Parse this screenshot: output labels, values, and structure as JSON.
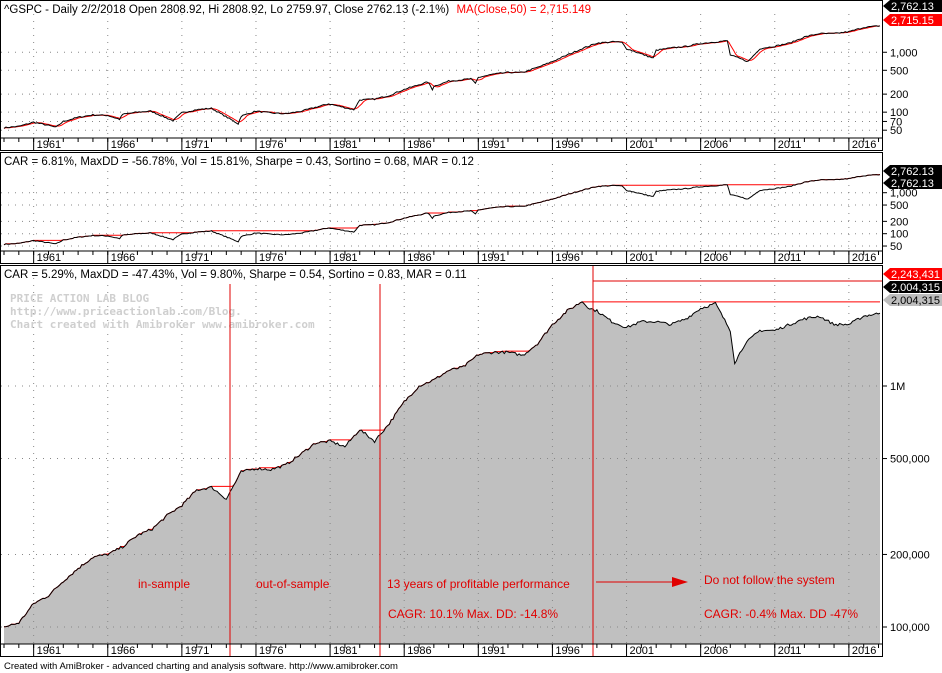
{
  "panes": [
    {
      "id": "price",
      "header_black": "^GSPC - Daily 2/2/2018 Open 2808.92, Hi 2808.92, Lo 2759.97, Close 2762.13 (-2.1%)",
      "header_red": "MA(Close,50) = 2,715.149",
      "y_ticks": [
        "1,000",
        "500",
        "200",
        "100",
        "70",
        "50"
      ],
      "y_tick_values": [
        1000,
        500,
        200,
        100,
        70,
        50
      ],
      "value_tags": [
        {
          "text": "2,762.13",
          "value": 2762.13,
          "bg": "#000000",
          "fg": "#ffffff"
        },
        {
          "text": "2,715.15",
          "value": 2715.15,
          "bg": "#ff0000",
          "fg": "#ffffff"
        }
      ]
    },
    {
      "id": "buyhold",
      "header_black": "CAR = 6.81%, MaxDD = -56.78%, Vol = 15.81%, Sharpe = 0.43, Sortino = 0.68, MAR = 0.12",
      "header_red": "",
      "y_ticks": [
        "1,000",
        "500",
        "200",
        "100",
        "50"
      ],
      "y_tick_values": [
        1000,
        500,
        200,
        100,
        50
      ],
      "value_tags": [
        {
          "text": "2,762.13",
          "value": 2762.13,
          "bg": "#000000",
          "fg": "#ffffff"
        },
        {
          "text": "2,762.13",
          "value": 2762.13,
          "bg": "#000000",
          "fg": "#ffffff"
        }
      ]
    },
    {
      "id": "equity",
      "header_black": "CAR = 5.29%, MaxDD = -47.43%, Vol = 9.80%, Sharpe = 0.54, Sortino = 0.83, MAR = 0.11",
      "header_red": "",
      "y_ticks": [
        "1M",
        "500,000",
        "200,000",
        "100,000"
      ],
      "y_tick_values": [
        1000000,
        500000,
        200000,
        100000
      ],
      "value_tags": [
        {
          "text": "2,243,431",
          "value": 2243431,
          "bg": "#ff0000",
          "fg": "#ffffff"
        },
        {
          "text": "2,004,315",
          "value": 2004315,
          "bg": "#000000",
          "fg": "#ffffff"
        },
        {
          "text": "2,004,315",
          "value": 2004315,
          "bg": "#bdbdbd",
          "fg": "#000000"
        }
      ]
    }
  ],
  "x_ticks": [
    "1961",
    "1966",
    "1971",
    "1976",
    "1981",
    "1986",
    "1991",
    "1996",
    "2001",
    "2006",
    "2011",
    "2016"
  ],
  "watermark": [
    "PRICE ACTION LAB BLOG",
    "http://www.priceactionlab.com/Blog.",
    "Chart created with Amibroker www.amibroker.com"
  ],
  "annotations": {
    "in_sample": "in-sample",
    "out_of_sample": "out-of-sample",
    "profitable": "13 years of  profitable performance",
    "cagr_profitable": "CAGR: 10.1%  Max. DD: -14.8%",
    "do_not_follow": "Do not follow the system",
    "cagr_after": "CAGR: -0.4%  Max. DD -47%"
  },
  "footer": "Created with AmiBroker - advanced charting and analysis software. http://www.amibroker.com",
  "colors": {
    "price_line": "#000000",
    "ma_line": "#ff0000",
    "peak_line": "#ff0000",
    "equity_fill": "#c0c0c0",
    "annotation": "#e00000",
    "watermark": "#cfcfcf"
  },
  "chart_data": [
    {
      "type": "line",
      "scale": "log",
      "x_range": [
        1959,
        2018.1
      ],
      "ylim": [
        40,
        3200
      ],
      "series": [
        {
          "name": "^GSPC",
          "x": [
            1959,
            1960,
            1961,
            1962,
            1962.5,
            1963,
            1964,
            1965,
            1966,
            1966.8,
            1967,
            1968,
            1968.9,
            1970.4,
            1971,
            1972,
            1973,
            1974.8,
            1975,
            1976,
            1977,
            1978,
            1979,
            1980,
            1980.9,
            1982.6,
            1983,
            1984,
            1985,
            1986,
            1987.6,
            1987.9,
            1988,
            1989,
            1990.5,
            1990.8,
            1991,
            1992,
            1993,
            1994,
            1995,
            1996,
            1997,
            1998,
            1999,
            2000.2,
            2000.7,
            2001,
            2002.8,
            2003,
            2004,
            2005,
            2006,
            2007.8,
            2008,
            2009.2,
            2010,
            2011,
            2012,
            2013,
            2014,
            2015,
            2016,
            2017,
            2018.1
          ],
          "values": [
            55,
            58,
            68,
            60,
            56,
            70,
            82,
            90,
            88,
            76,
            92,
            100,
            104,
            72,
            98,
            110,
            116,
            64,
            86,
            104,
            97,
            94,
            103,
            120,
            138,
            110,
            160,
            165,
            190,
            240,
            320,
            240,
            270,
            330,
            360,
            300,
            380,
            430,
            460,
            460,
            560,
            700,
            900,
            1150,
            1420,
            1500,
            1450,
            1150,
            800,
            1080,
            1180,
            1250,
            1400,
            1560,
            900,
            700,
            1150,
            1260,
            1420,
            1800,
            2050,
            2050,
            2200,
            2600,
            2762
          ]
        },
        {
          "name": "MA(Close,50)",
          "x": [
            1959,
            2018.1
          ],
          "values": [
            55,
            2715
          ]
        }
      ]
    },
    {
      "type": "line",
      "scale": "log",
      "x_range": [
        1959,
        2018.1
      ],
      "ylim": [
        40,
        3200
      ],
      "series": [
        {
          "name": "",
          "x": [
            1959,
            2018.1
          ],
          "values": [
            55,
            2762
          ]
        }
      ]
    },
    {
      "type": "area",
      "scale": "log",
      "x_range": [
        1959,
        2018.1
      ],
      "ylim": [
        85000,
        2600000
      ],
      "series": [
        {
          "name": "",
          "x": [
            1959,
            1960,
            1961,
            1962,
            1963,
            1964,
            1965,
            1966,
            1967,
            1968,
            1969,
            1970,
            1971,
            1972,
            1973,
            1974,
            1975,
            1976,
            1977,
            1978,
            1979,
            1980,
            1981,
            1982,
            1983,
            1984,
            1985,
            1986,
            1987,
            1988,
            1989,
            1990,
            1991,
            1992,
            1993,
            1994,
            1995,
            1996,
            1997,
            1998,
            1998.5,
            1999,
            2000,
            2001,
            2002,
            2003,
            2004,
            2005,
            2006,
            2007,
            2008,
            2008.3,
            2009,
            2010,
            2011,
            2012,
            2013,
            2014,
            2015,
            2016,
            2017,
            2018.1
          ],
          "values": [
            100000,
            104000,
            125000,
            135000,
            155000,
            175000,
            195000,
            200000,
            215000,
            240000,
            255000,
            290000,
            320000,
            370000,
            380000,
            340000,
            440000,
            455000,
            450000,
            470000,
            520000,
            580000,
            590000,
            560000,
            660000,
            590000,
            700000,
            860000,
            1000000,
            1060000,
            1160000,
            1200000,
            1350000,
            1380000,
            1380000,
            1340000,
            1500000,
            1800000,
            2050000,
            2243431,
            2100000,
            2050000,
            1850000,
            1750000,
            1850000,
            1850000,
            1800000,
            1900000,
            2100000,
            2200000,
            1700000,
            1250000,
            1500000,
            1700000,
            1700000,
            1800000,
            1900000,
            1950000,
            1800000,
            1800000,
            1950000,
            2004315
          ]
        }
      ]
    }
  ]
}
